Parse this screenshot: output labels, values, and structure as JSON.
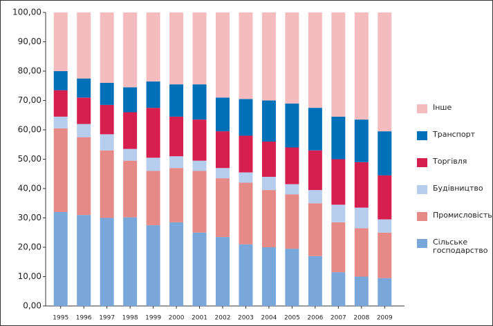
{
  "chart_data": {
    "type": "stacked-bar",
    "categories": [
      "1995",
      "1996",
      "1997",
      "1998",
      "1999",
      "2000",
      "2001",
      "2002",
      "2003",
      "2004",
      "2005",
      "2006",
      "2007",
      "2008",
      "2009"
    ],
    "series": [
      {
        "name": "Сільське господарство",
        "color": "#7aa7d9",
        "values": [
          32,
          31,
          30,
          30.2,
          27.5,
          28.5,
          25,
          23.5,
          21,
          20,
          19.5,
          17,
          11.5,
          10,
          9.5
        ]
      },
      {
        "name": "Промисловість",
        "color": "#e58a87",
        "values": [
          28.5,
          26.5,
          23,
          19.3,
          18.5,
          18.5,
          21,
          20,
          21,
          19.5,
          18.5,
          18,
          17,
          16.5,
          15.5
        ]
      },
      {
        "name": "Будівництво",
        "color": "#b7cdee",
        "values": [
          4,
          4.5,
          5.5,
          4,
          4.5,
          4,
          3.5,
          3.5,
          3.5,
          4.5,
          3.5,
          4.5,
          6,
          7,
          4.5
        ]
      },
      {
        "name": "Торгівля",
        "color": "#d71f4f",
        "values": [
          9,
          9,
          10,
          12.5,
          17,
          13.5,
          14,
          12.5,
          12.5,
          12,
          12.5,
          13.5,
          15.5,
          15.5,
          15
        ]
      },
      {
        "name": "Транспорт",
        "color": "#0070b8",
        "values": [
          6.5,
          6.5,
          7.5,
          8.5,
          9,
          11,
          12,
          11.5,
          12.5,
          14,
          15,
          14.5,
          14.5,
          14.5,
          15
        ]
      },
      {
        "name": "Інше",
        "color": "#f4bcbe",
        "values": [
          20,
          22.5,
          24,
          25.5,
          23.5,
          24.5,
          24.5,
          29,
          29.5,
          30,
          31,
          32.5,
          35.5,
          36.5,
          40.5
        ]
      }
    ],
    "ylim": [
      0,
      100
    ],
    "yticks": [
      {
        "value": 0,
        "label": "0,00"
      },
      {
        "value": 10,
        "label": "10,00"
      },
      {
        "value": 20,
        "label": "20,00"
      },
      {
        "value": 30,
        "label": "30,00"
      },
      {
        "value": 40,
        "label": "40,00"
      },
      {
        "value": 50,
        "label": "50,00"
      },
      {
        "value": 60,
        "label": "60,00"
      },
      {
        "value": 70,
        "label": "70,00"
      },
      {
        "value": 80,
        "label": "80,00"
      },
      {
        "value": 90,
        "label": "90,00"
      },
      {
        "value": 100,
        "label": "100,00"
      }
    ],
    "grid": false
  }
}
